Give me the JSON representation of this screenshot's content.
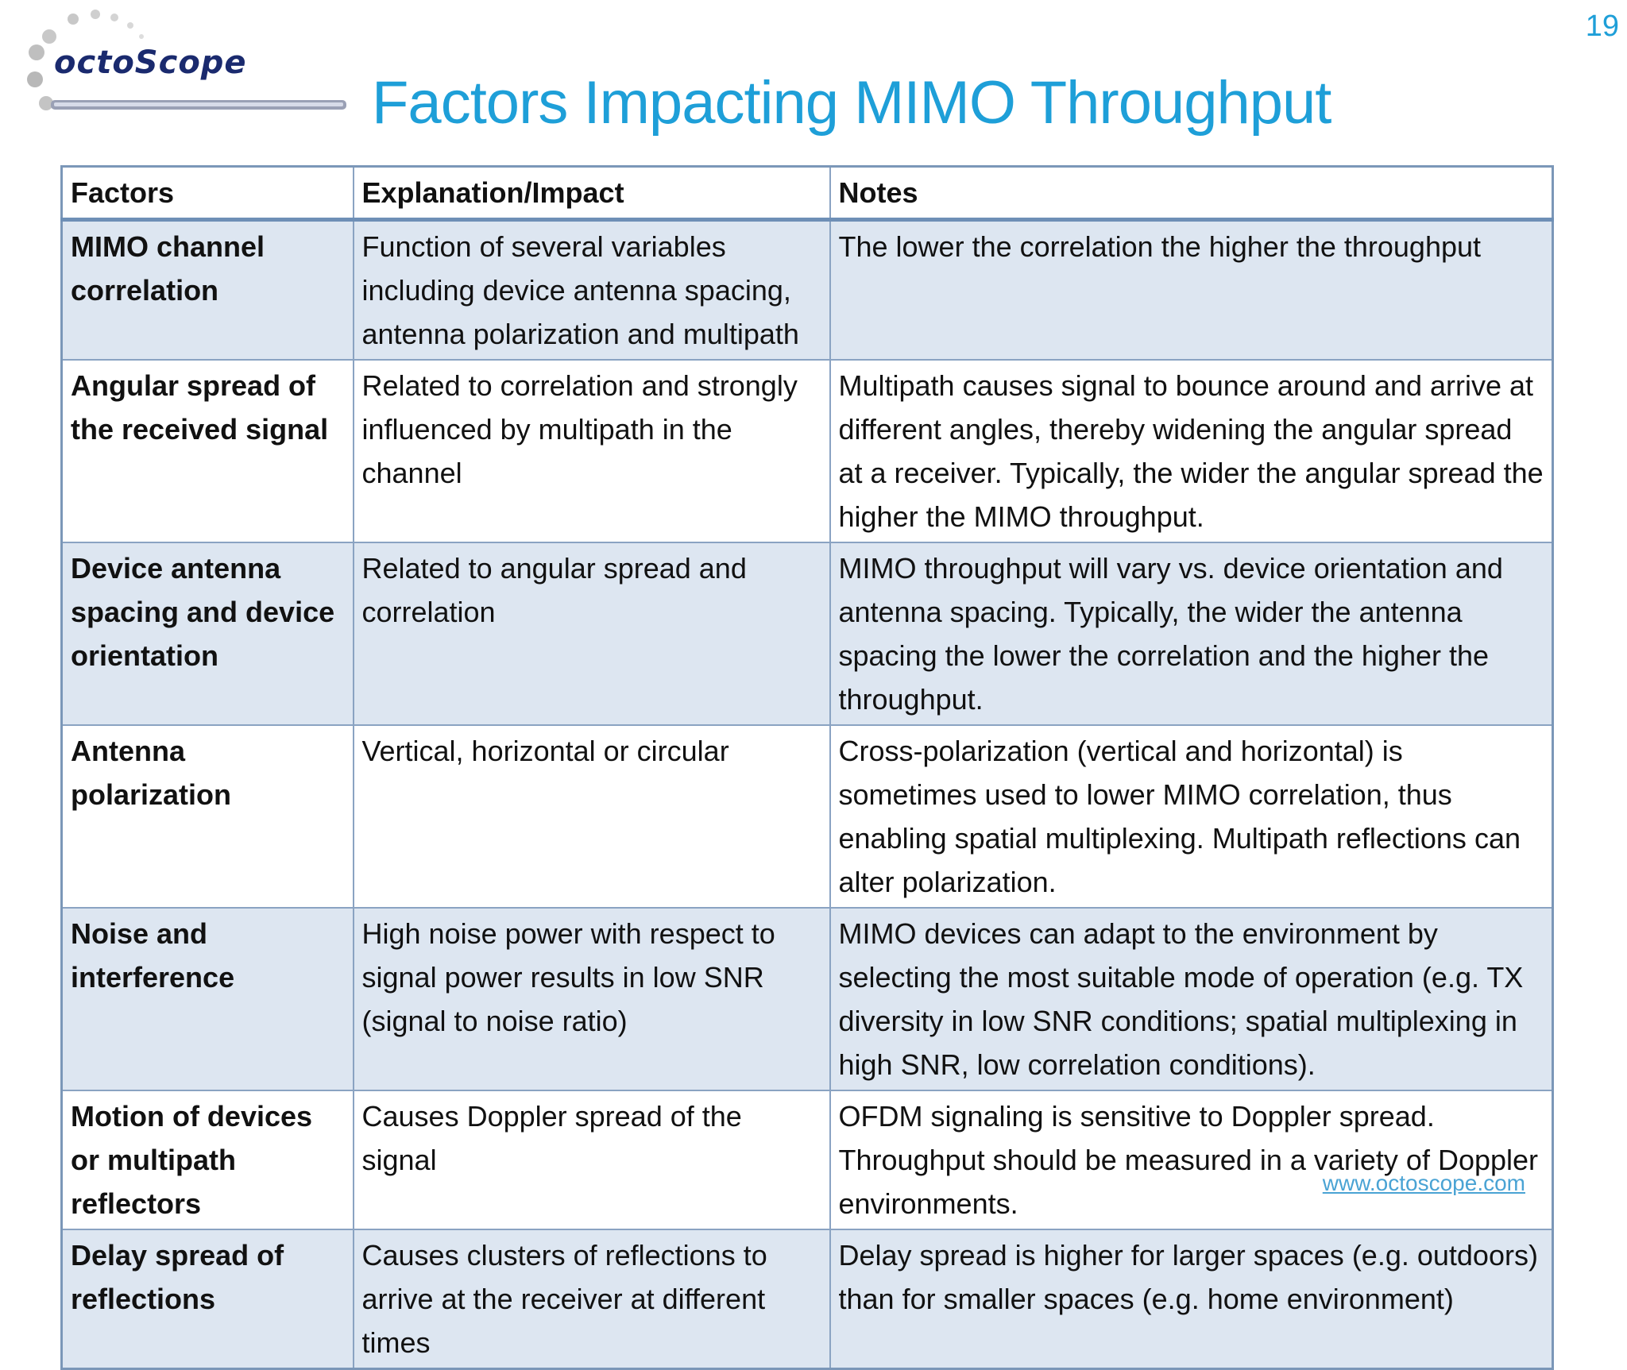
{
  "page_number": "19",
  "logo": {
    "text": "octoScope",
    "icon": "octoscope-logo"
  },
  "title": "Factors Impacting MIMO Throughput",
  "table": {
    "headers": [
      "Factors",
      "Explanation/Impact",
      "Notes"
    ],
    "rows": [
      {
        "factor": "MIMO channel correlation",
        "explanation": "Function of several variables including device antenna spacing, antenna polarization and multipath",
        "notes": "The lower the correlation the higher the throughput"
      },
      {
        "factor": "Angular spread of the received signal",
        "explanation": "Related to correlation and strongly influenced by multipath in the channel",
        "notes": "Multipath causes signal to bounce around and arrive at different angles, thereby widening the angular spread at a receiver.  Typically, the wider the angular spread the higher the MIMO throughput."
      },
      {
        "factor": "Device antenna spacing and device orientation",
        "explanation": "Related to angular spread and correlation",
        "notes": "MIMO throughput will vary vs. device orientation and antenna spacing. Typically, the wider the antenna spacing the lower the correlation and the higher the throughput."
      },
      {
        "factor": "Antenna polarization",
        "explanation": "Vertical, horizontal or circular",
        "notes": "Cross-polarization (vertical and horizontal) is sometimes used to lower MIMO correlation, thus enabling spatial multiplexing.  Multipath reflections can alter polarization."
      },
      {
        "factor": "Noise and interference",
        "explanation": "High noise power with respect to signal power results in low SNR (signal to noise ratio)",
        "notes": "MIMO devices can adapt to the environment by selecting the most suitable mode of operation (e.g. TX diversity in low SNR conditions; spatial multiplexing in high SNR, low correlation conditions)."
      },
      {
        "factor": "Motion of devices or multipath reflectors",
        "explanation": "Causes Doppler spread of the signal",
        "notes": "OFDM signaling is sensitive to Doppler spread.  Throughput should be measured in a variety of Doppler environments."
      },
      {
        "factor": "Delay spread of reflections",
        "explanation": "Causes clusters of reflections to arrive at the receiver at different times",
        "notes": "Delay spread is higher for larger spaces (e.g. outdoors) than for smaller spaces (e.g. home environment)"
      }
    ]
  },
  "footer": {
    "link": "www.octoscope.com"
  },
  "colors": {
    "title": "#1e9fd8",
    "row_shade": "#dde6f1",
    "border": "#8aa3c2",
    "link": "#4aa3d4"
  }
}
